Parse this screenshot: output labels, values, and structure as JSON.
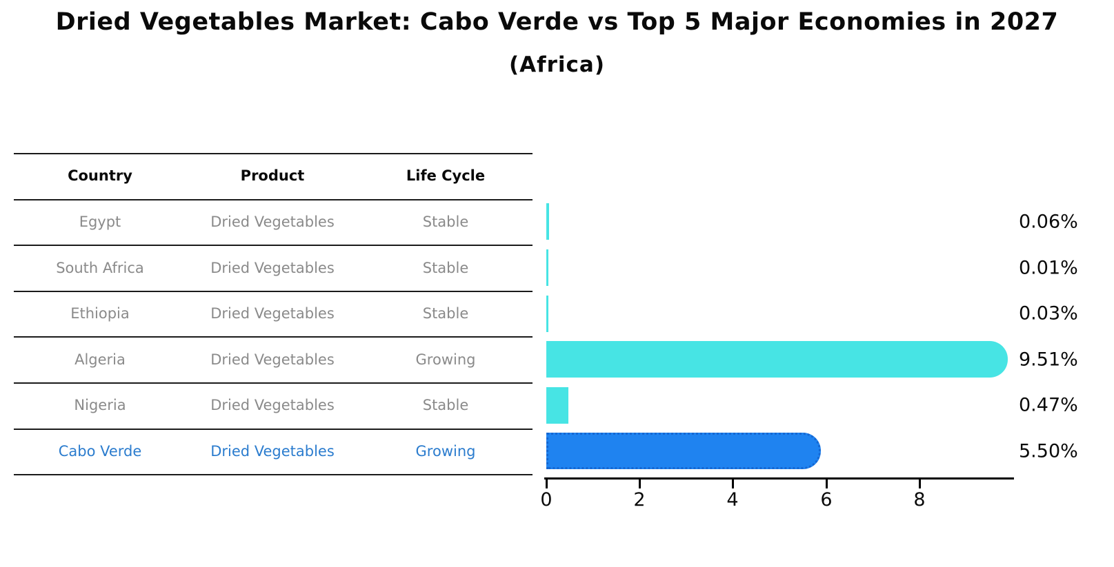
{
  "header": {
    "title": "Dried Vegetables Market: Cabo Verde vs Top 5 Major Economies in 2027",
    "subtitle": "(Africa)"
  },
  "table": {
    "headers": [
      "Country",
      "Product",
      "Life Cycle"
    ],
    "rows": [
      {
        "country": "Egypt",
        "product": "Dried Vegetables",
        "life_cycle": "Stable",
        "highlighted": false
      },
      {
        "country": "South Africa",
        "product": "Dried Vegetables",
        "life_cycle": "Stable",
        "highlighted": false
      },
      {
        "country": "Ethiopia",
        "product": "Dried Vegetables",
        "life_cycle": "Stable",
        "highlighted": false
      },
      {
        "country": "Algeria",
        "product": "Dried Vegetables",
        "life_cycle": "Growing",
        "highlighted": false
      },
      {
        "country": "Nigeria",
        "product": "Dried Vegetables",
        "life_cycle": "Stable",
        "highlighted": false
      },
      {
        "country": "Cabo Verde",
        "product": "Dried Vegetables",
        "life_cycle": "Growing",
        "highlighted": true
      }
    ]
  },
  "chart_data": {
    "type": "bar",
    "orientation": "horizontal",
    "title": "Dried Vegetables Market: Cabo Verde vs Top 5 Major Economies in 2027",
    "subtitle": "(Africa)",
    "categories": [
      "Egypt",
      "South Africa",
      "Ethiopia",
      "Algeria",
      "Nigeria",
      "Cabo Verde"
    ],
    "values": [
      0.06,
      0.01,
      0.03,
      9.51,
      0.47,
      5.5
    ],
    "value_labels": [
      "0.06%",
      "0.01%",
      "0.03%",
      "9.51%",
      "0.47%",
      "5.50%"
    ],
    "xlabel": "",
    "ylabel": "",
    "xticks": [
      "0",
      "2",
      "4",
      "6",
      "8"
    ],
    "xtick_values": [
      0,
      2,
      4,
      6,
      8
    ],
    "xlim": [
      0,
      10
    ],
    "grid": false,
    "legend": false,
    "colors": {
      "default_bar": "#47E4E4",
      "highlight_bar": "#1F83F0",
      "highlight_bar_border": "#1567D2",
      "highlight_text": "#2B7CCE",
      "row_text": "#8A8A8A",
      "axis": "#000000"
    }
  }
}
